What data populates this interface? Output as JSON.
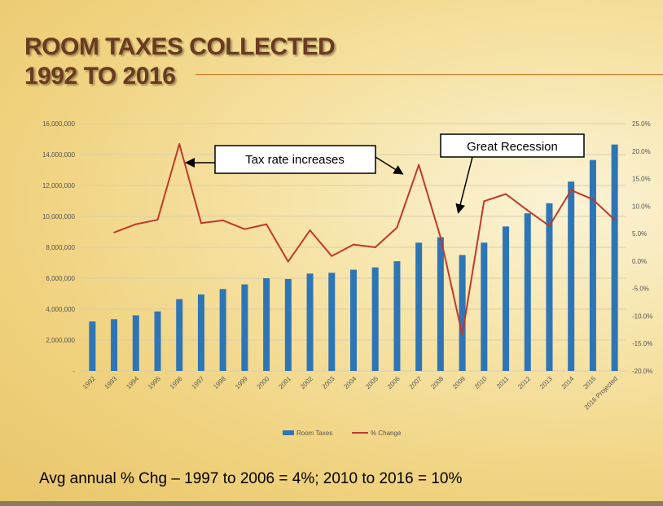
{
  "slide": {
    "title_line1": "ROOM TAXES COLLECTED",
    "title_line2": "1992 TO 2016",
    "footer": "Avg annual % Chg – 1997 to 2006 = 4%; 2010 to 2016 = 10%"
  },
  "colors": {
    "bar": "#2e75b6",
    "line": "#c0392b",
    "title": "#6b3a1f"
  },
  "chart_data": {
    "type": "bar",
    "categories": [
      "1992",
      "1993",
      "1994",
      "1995",
      "1996",
      "1997",
      "1998",
      "1999",
      "2000",
      "2001",
      "2002",
      "2003",
      "2004",
      "2005",
      "2006",
      "2007",
      "2008",
      "2009",
      "2010",
      "2011",
      "2012",
      "2013",
      "2014",
      "2015",
      "2016 Projected"
    ],
    "series": [
      {
        "name": "Room Taxes",
        "type": "bar",
        "axis": "left",
        "values": [
          3200000,
          3350000,
          3600000,
          3850000,
          4650000,
          4950000,
          5300000,
          5600000,
          6000000,
          5950000,
          6300000,
          6350000,
          6550000,
          6700000,
          7100000,
          8300000,
          8650000,
          7500000,
          8300000,
          9350000,
          10200000,
          10850000,
          12250000,
          13650000,
          14650000
        ]
      },
      {
        "name": "% Change",
        "type": "line",
        "axis": "right",
        "values": [
          null,
          5.2,
          6.7,
          7.5,
          21.3,
          6.9,
          7.4,
          5.8,
          6.7,
          -0.1,
          5.6,
          0.9,
          3.0,
          2.5,
          6.1,
          17.5,
          4.3,
          -13.4,
          10.9,
          12.2,
          9.2,
          6.4,
          12.9,
          11.2,
          7.5
        ]
      }
    ],
    "y_left": {
      "min": 0,
      "max": 16000000,
      "step": 2000000,
      "tick_labels": [
        "-",
        "2,000,000",
        "4,000,000",
        "6,000,000",
        "8,000,000",
        "10,000,000",
        "12,000,000",
        "14,000,000",
        "16,000,000"
      ]
    },
    "y_right": {
      "min": -20,
      "max": 25,
      "step": 5,
      "tick_labels": [
        "-20.0%",
        "-15.0%",
        "-10.0%",
        "-5.0%",
        "0.0%",
        "5.0%",
        "10.0%",
        "15.0%",
        "20.0%",
        "25.0%"
      ]
    },
    "grid": true,
    "legend_position": "bottom",
    "annotations": [
      {
        "text": "Tax rate increases",
        "points_to": [
          "1996",
          "2007"
        ]
      },
      {
        "text": "Great Recession",
        "points_to": [
          "2009"
        ]
      }
    ]
  }
}
